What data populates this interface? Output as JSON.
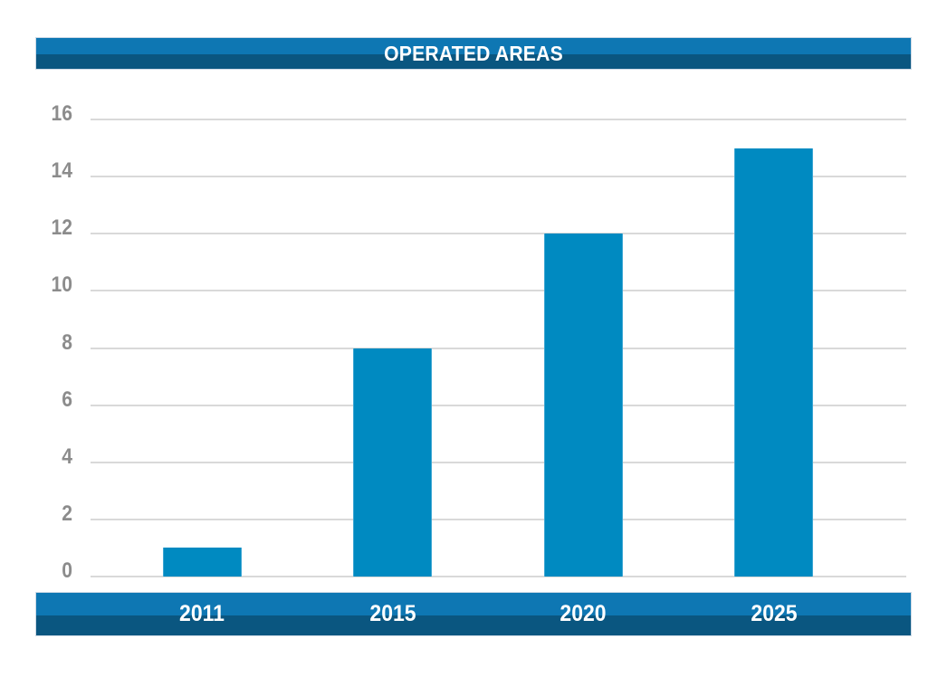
{
  "colors": {
    "background": "#ffffff",
    "bar": "#008ac1",
    "band_light": "#0e77b3",
    "band_dark": "#0a5680",
    "gridline": "#d9d9d9",
    "tick_label": "#8c8c8c",
    "band_text": "#ffffff"
  },
  "chart_data": {
    "type": "bar",
    "title": "OPERATED AREAS",
    "categories": [
      "2011",
      "2015",
      "2020",
      "2025"
    ],
    "values": [
      1,
      8,
      12,
      15
    ],
    "xlabel": "",
    "ylabel": "",
    "ylim": [
      0,
      16
    ],
    "ytick_step": 2,
    "yticks": [
      0,
      2,
      4,
      6,
      8,
      10,
      12,
      14,
      16
    ],
    "grid": true,
    "legend": false,
    "legend_position": "none"
  }
}
